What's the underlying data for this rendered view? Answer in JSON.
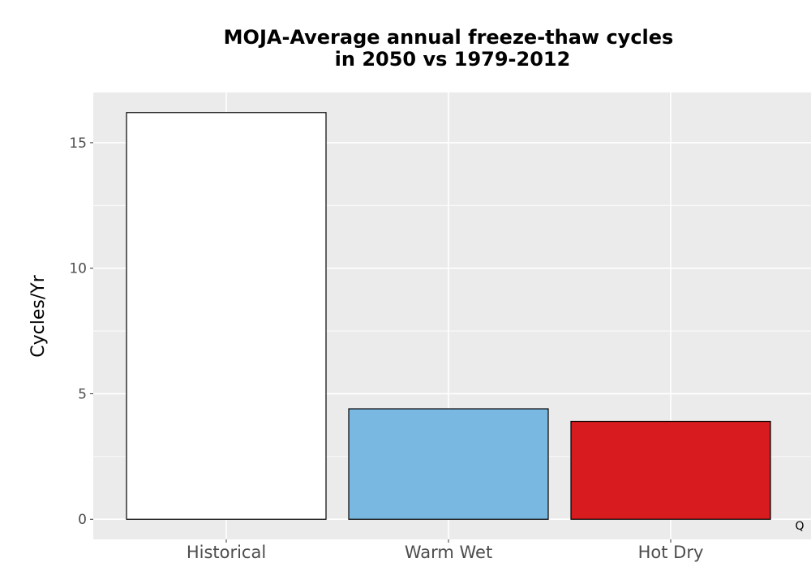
{
  "chart_data": {
    "type": "bar",
    "title_lines": [
      "MOJA-Average annual freeze-thaw cycles",
      "in 2050 vs 1979-2012"
    ],
    "xlabel": "",
    "ylabel": "Cycles/Yr",
    "categories": [
      "Historical",
      "Warm Wet",
      "Hot Dry"
    ],
    "values": [
      16.2,
      4.4,
      3.9
    ],
    "bar_colors": [
      "#ffffff",
      "#79b8e0",
      "#d81b1e"
    ],
    "bar_outline": "#000000",
    "ylim": [
      -0.8,
      17.0
    ],
    "yticks": [
      0,
      5,
      10,
      15
    ],
    "ytick_labels": [
      "0",
      "5",
      "10",
      "15"
    ],
    "grid": true,
    "panel_background": "#ebebeb",
    "grid_color": "#ffffff",
    "corner_note": "Q"
  }
}
